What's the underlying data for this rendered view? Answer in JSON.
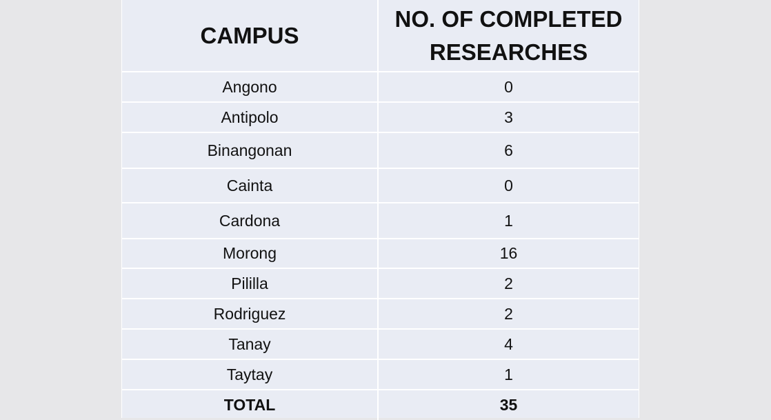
{
  "table": {
    "headers": {
      "campus": "CAMPUS",
      "researches": "NO. OF COMPLETED RESEARCHES"
    },
    "rows": [
      {
        "campus": "Angono",
        "count": "0"
      },
      {
        "campus": "Antipolo",
        "count": "3"
      },
      {
        "campus": "Binangonan",
        "count": "6"
      },
      {
        "campus": "Cainta",
        "count": "0"
      },
      {
        "campus": "Cardona",
        "count": "1"
      },
      {
        "campus": "Morong",
        "count": "16"
      },
      {
        "campus": "Pililla",
        "count": "2"
      },
      {
        "campus": "Rodriguez",
        "count": "2"
      },
      {
        "campus": "Tanay",
        "count": "4"
      },
      {
        "campus": "Taytay",
        "count": "1"
      }
    ],
    "total": {
      "label": "TOTAL",
      "count": "35"
    }
  },
  "colors": {
    "page_background": "#e7e7e9",
    "table_background": "#e9ecf4",
    "grid_lines": "#ffffff",
    "text": "#111111"
  }
}
